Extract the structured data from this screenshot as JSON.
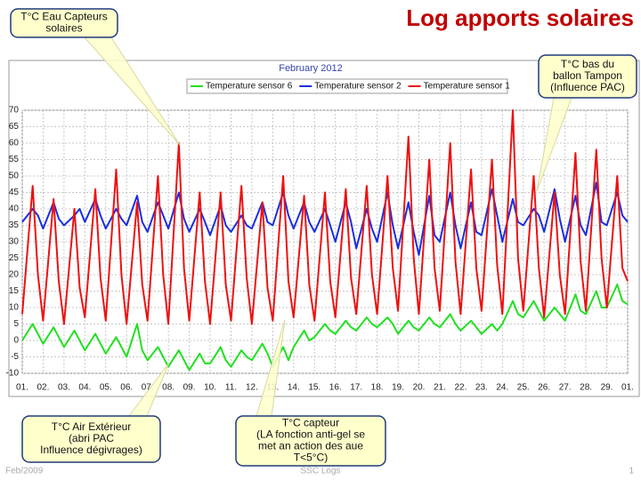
{
  "slide": {
    "title": "Log apports solaires",
    "footer_left": "Feb/2009",
    "footer_center": "SSC  Logs",
    "page": "1"
  },
  "chart_data": {
    "type": "line",
    "title": "February 2012",
    "x": [
      1,
      1.5,
      1.75,
      2,
      2.5,
      2.75,
      3,
      3.5,
      3.75,
      4,
      4.5,
      4.75,
      5,
      5.5,
      5.75,
      6,
      6.5,
      6.75,
      7,
      7.5,
      7.75,
      8,
      8.5,
      8.75,
      9,
      9.5,
      9.75,
      10,
      10.5,
      10.75,
      11,
      11.5,
      11.75,
      12,
      12.5,
      12.75,
      13,
      13.5,
      13.75,
      14,
      14.5,
      14.75,
      15,
      15.5,
      15.75,
      16,
      16.5,
      16.75,
      17,
      17.5,
      17.75,
      18,
      18.5,
      18.75,
      19,
      19.5,
      19.75,
      20,
      20.5,
      20.75,
      21,
      21.5,
      21.75,
      22,
      22.5,
      22.75,
      23,
      23.5,
      23.75,
      24,
      24.5,
      24.75,
      25,
      25.5,
      25.75,
      26,
      26.5,
      26.75,
      27,
      27.5,
      27.75,
      28,
      28.5,
      28.75,
      29,
      29.5,
      29.75,
      30
    ],
    "series": [
      {
        "name": "Temperature sensor 6",
        "color": "#22e022",
        "values": [
          0,
          5,
          2,
          -1,
          4,
          1,
          -2,
          3,
          0,
          -3,
          2,
          -1,
          -4,
          1,
          -2,
          -5,
          5,
          -3,
          -6,
          -2,
          -5,
          -8,
          -3,
          -6,
          -9,
          -4,
          -7,
          -7,
          -2,
          -6,
          -8,
          -3,
          -5,
          -6,
          -1,
          -4,
          -8,
          -2,
          -6,
          -2,
          3,
          0,
          1,
          5,
          3,
          2,
          6,
          4,
          3,
          7,
          5,
          4,
          7,
          5,
          2,
          6,
          4,
          3,
          7,
          5,
          4,
          8,
          5,
          3,
          6,
          4,
          2,
          5,
          3,
          5,
          12,
          8,
          7,
          12,
          9,
          6,
          10,
          8,
          6,
          14,
          9,
          8,
          15,
          10,
          10,
          17,
          12,
          11
        ]
      },
      {
        "name": "Temperature sensor 2",
        "color": "#1a2ee0",
        "values": [
          36,
          40,
          38,
          34,
          42,
          37,
          35,
          38,
          40,
          36,
          43,
          38,
          34,
          40,
          37,
          35,
          44,
          36,
          33,
          42,
          38,
          34,
          45,
          37,
          33,
          40,
          36,
          32,
          41,
          35,
          33,
          38,
          35,
          34,
          42,
          36,
          35,
          45,
          38,
          34,
          42,
          36,
          33,
          40,
          35,
          30,
          42,
          36,
          28,
          40,
          34,
          30,
          45,
          35,
          28,
          42,
          33,
          26,
          44,
          32,
          30,
          45,
          35,
          28,
          42,
          33,
          32,
          46,
          38,
          30,
          43,
          36,
          35,
          40,
          38,
          33,
          46,
          37,
          30,
          44,
          35,
          32,
          48,
          36,
          35,
          45,
          38,
          36
        ]
      },
      {
        "name": "Temperature sensor 1",
        "color": "#ee1111",
        "values": [
          8,
          47,
          20,
          6,
          43,
          18,
          5,
          40,
          16,
          7,
          46,
          19,
          6,
          52,
          20,
          5,
          42,
          17,
          6,
          50,
          20,
          5,
          60,
          22,
          6,
          45,
          18,
          5,
          45,
          17,
          6,
          47,
          19,
          5,
          42,
          16,
          6,
          50,
          18,
          7,
          44,
          17,
          6,
          45,
          18,
          7,
          46,
          19,
          8,
          47,
          20,
          8,
          50,
          22,
          9,
          62,
          25,
          8,
          55,
          22,
          9,
          60,
          24,
          8,
          52,
          22,
          9,
          55,
          23,
          8,
          70,
          25,
          9,
          50,
          22,
          7,
          45,
          20,
          8,
          57,
          24,
          9,
          58,
          25,
          10,
          50,
          22,
          18
        ]
      }
    ],
    "xlim": [
      1,
      30
    ],
    "xticks": [
      {
        "value": 1,
        "label": "01."
      },
      {
        "value": 2,
        "label": "02."
      },
      {
        "value": 3,
        "label": "03."
      },
      {
        "value": 4,
        "label": "04."
      },
      {
        "value": 5,
        "label": "05."
      },
      {
        "value": 6,
        "label": "06."
      },
      {
        "value": 7,
        "label": "07."
      },
      {
        "value": 8,
        "label": "08."
      },
      {
        "value": 9,
        "label": "09."
      },
      {
        "value": 10,
        "label": "10."
      },
      {
        "value": 11,
        "label": "11."
      },
      {
        "value": 12,
        "label": "12."
      },
      {
        "value": 13,
        "label": "13."
      },
      {
        "value": 14,
        "label": "14."
      },
      {
        "value": 15,
        "label": "15."
      },
      {
        "value": 16,
        "label": "16."
      },
      {
        "value": 17,
        "label": "17."
      },
      {
        "value": 18,
        "label": "18."
      },
      {
        "value": 19,
        "label": "19."
      },
      {
        "value": 20,
        "label": "20."
      },
      {
        "value": 21,
        "label": "21."
      },
      {
        "value": 22,
        "label": "22."
      },
      {
        "value": 23,
        "label": "23."
      },
      {
        "value": 24,
        "label": "24."
      },
      {
        "value": 25,
        "label": "25."
      },
      {
        "value": 26,
        "label": "26."
      },
      {
        "value": 27,
        "label": "27."
      },
      {
        "value": 28,
        "label": "28."
      },
      {
        "value": 29,
        "label": "29."
      },
      {
        "value": 30,
        "label": "01."
      }
    ],
    "ylim": [
      -10,
      70
    ],
    "yticks": [
      -10,
      -5,
      0,
      5,
      10,
      15,
      20,
      25,
      30,
      35,
      40,
      45,
      50,
      55,
      60,
      65,
      70
    ],
    "grid": true,
    "annotations": [
      {
        "lines": [
          "T°C Eau Capteurs",
          "solaires"
        ]
      },
      {
        "lines": [
          "T°C bas du",
          "ballon Tampon",
          "(Influence PAC)"
        ]
      },
      {
        "lines": [
          "T°C Air Extérieur",
          "(abri PAC",
          "Influence dégivrages)"
        ]
      },
      {
        "lines": [
          "T°C capteur",
          "(LA fonction anti-gel se",
          "met an action des aue",
          "T<5°C)"
        ]
      }
    ]
  }
}
